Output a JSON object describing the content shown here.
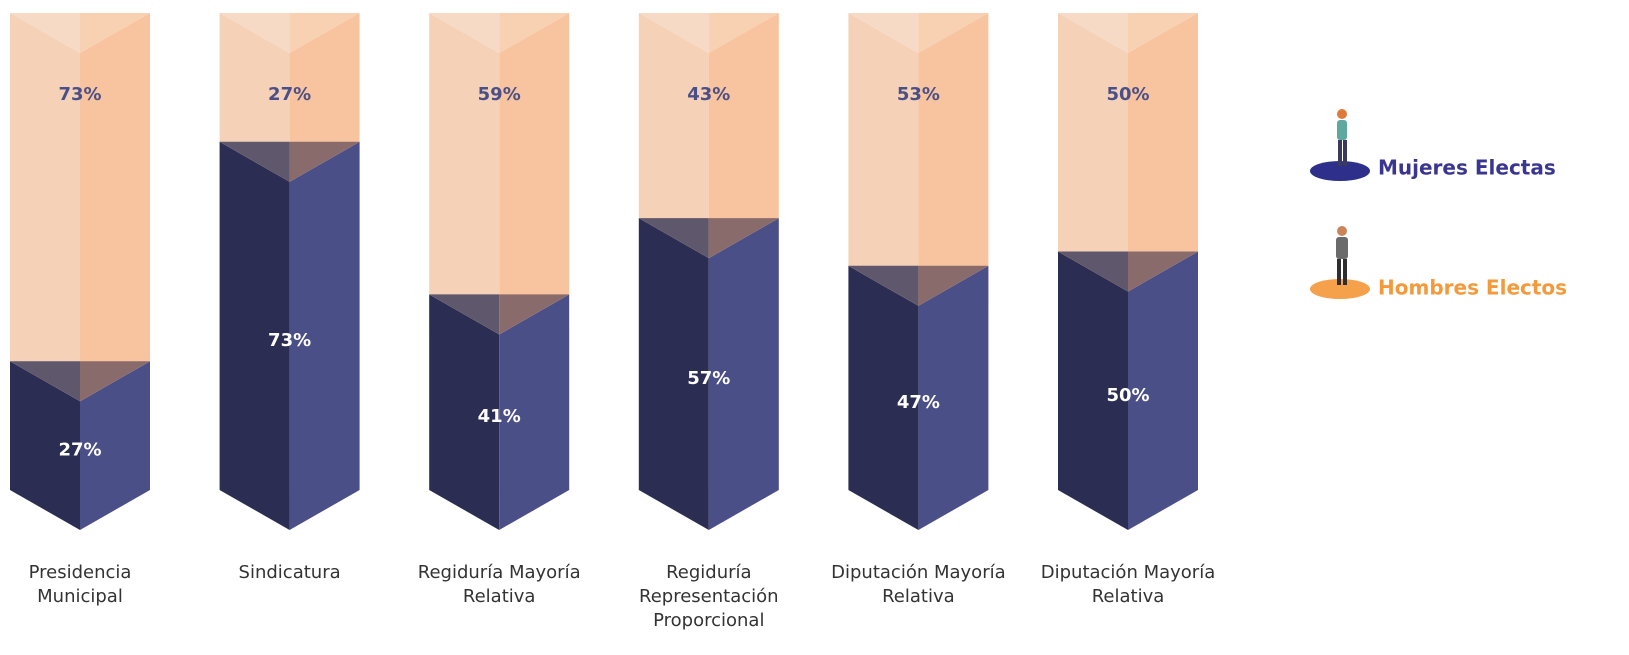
{
  "chart_data": {
    "type": "stacked_bar_prism",
    "categories": [
      "Presidencia Municipal",
      "Sindicatura",
      "Regiduría Mayoría Relativa",
      "Regiduría Representación Proporcional",
      "Diputación Mayoría Relativa",
      "Diputación Mayoría Relativa"
    ],
    "series": [
      {
        "name": "Mujeres Electas",
        "color": "#4b4f88",
        "side_color": "#2c2d52",
        "values": [
          27,
          73,
          41,
          57,
          47,
          50
        ],
        "value_labels": [
          "27%",
          "73%",
          "41%",
          "57%",
          "47%",
          "50%"
        ]
      },
      {
        "name": "Hombres Electos",
        "color": "#f8c49f",
        "side_color": "#f5d1b7",
        "values": [
          73,
          27,
          59,
          43,
          53,
          50
        ],
        "value_labels": [
          "73%",
          "27%",
          "59%",
          "43%",
          "53%",
          "50%"
        ]
      }
    ],
    "ylim": [
      0,
      100
    ]
  }
}
